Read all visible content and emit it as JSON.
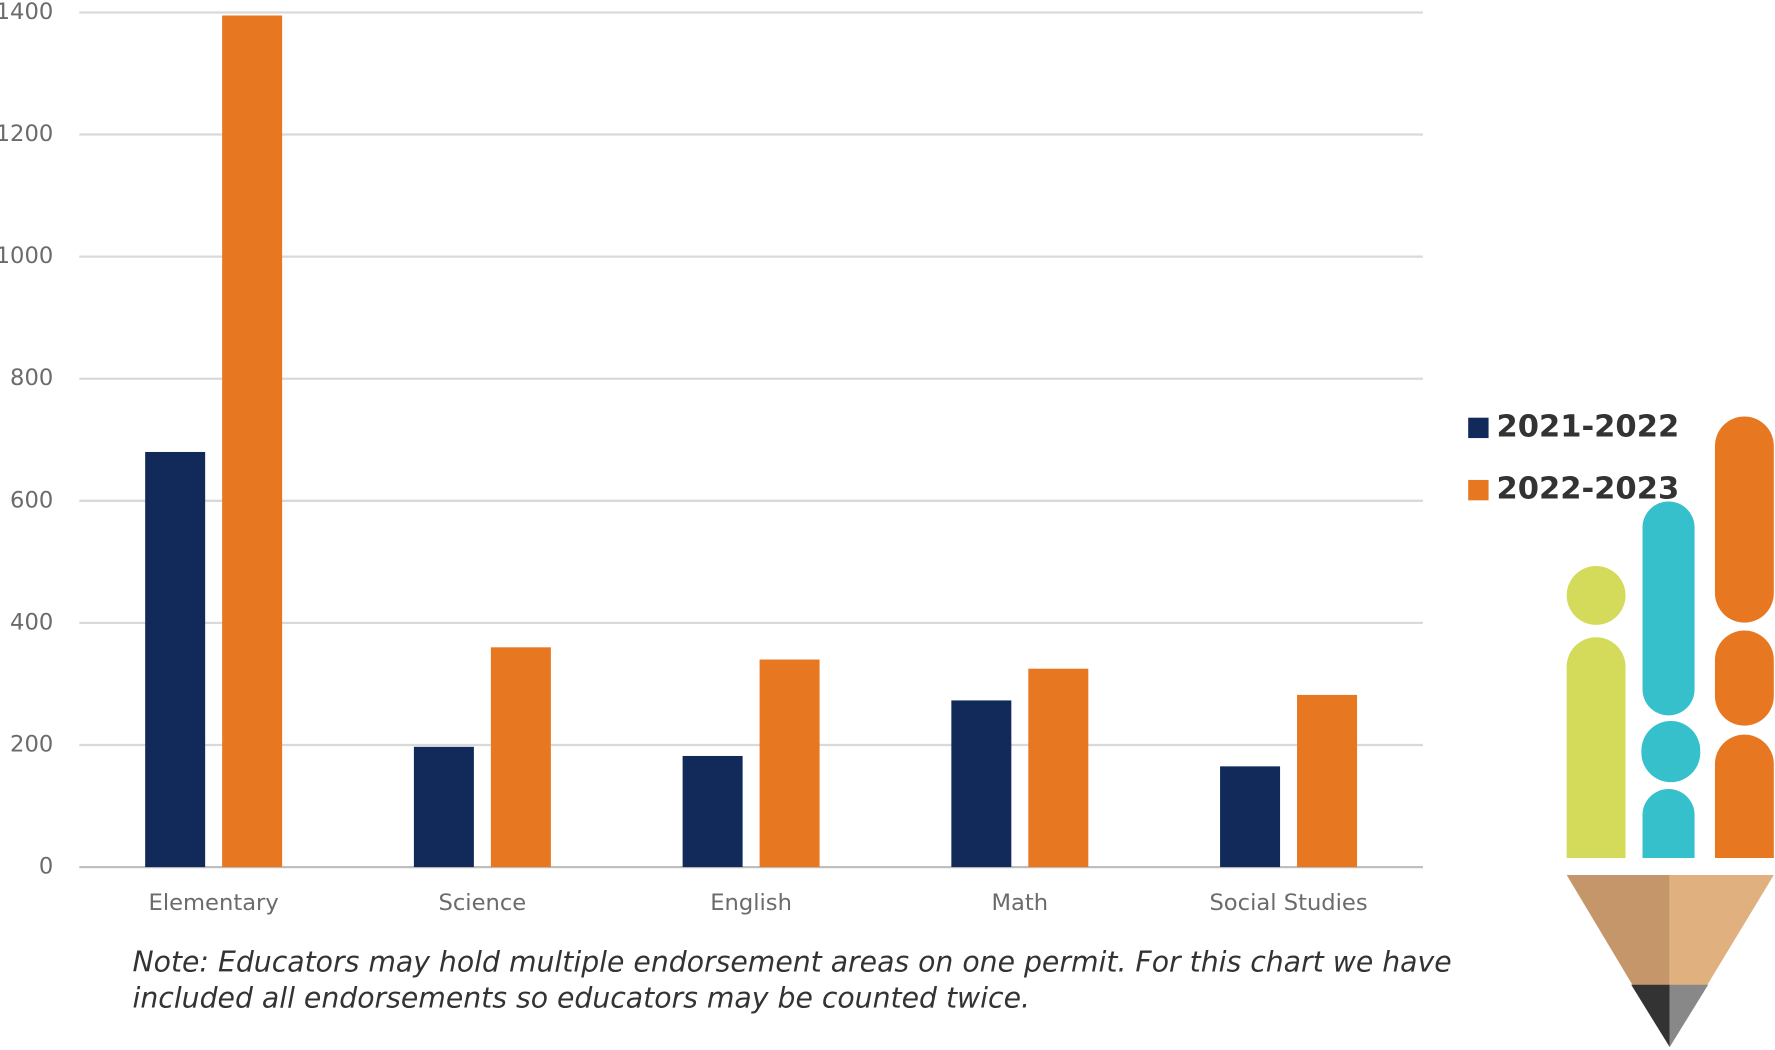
{
  "chart_data": {
    "type": "bar",
    "categories": [
      "Elementary",
      "Science",
      "English",
      "Math",
      "Social Studies"
    ],
    "series": [
      {
        "name": "2021-2022",
        "color": "#112a59",
        "values": [
          680,
          197,
          182,
          273,
          165
        ]
      },
      {
        "name": "2022-2023",
        "color": "#e87722",
        "values": [
          1395,
          360,
          340,
          325,
          282
        ]
      }
    ],
    "ylim": [
      0,
      1400
    ],
    "yticks": [
      0,
      200,
      400,
      600,
      800,
      1000,
      1200,
      1400
    ],
    "grid": true,
    "legend": "right",
    "note_lines": [
      "Note: Educators may hold multiple endorsement areas on one permit. For this chart we have",
      "included all endorsements so educators may be counted twice."
    ]
  }
}
